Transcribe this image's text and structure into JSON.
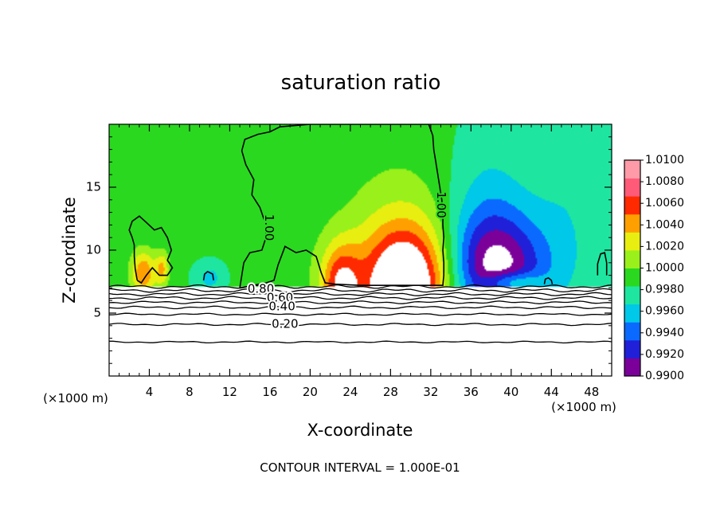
{
  "chart_data": {
    "type": "heatmap",
    "title": "saturation ratio",
    "xlabel": "X-coordinate",
    "ylabel": "Z-coordinate",
    "x_unit_left": "(×1000 m)",
    "x_unit_right": "(×1000 m)",
    "xlim": [
      0,
      50
    ],
    "ylim": [
      0,
      20
    ],
    "x_ticks": [
      4,
      8,
      12,
      16,
      20,
      24,
      28,
      32,
      36,
      40,
      44,
      48
    ],
    "x_tick_labels": [
      "4",
      "8",
      "12",
      "16",
      "20",
      "24",
      "28",
      "32",
      "36",
      "40",
      "44",
      "48"
    ],
    "y_ticks": [
      5,
      10,
      15
    ],
    "y_tick_labels": [
      "5",
      "10",
      "15"
    ],
    "footer": "CONTOUR INTERVAL = 1.000E-01",
    "colorbar": {
      "min": 0.99,
      "max": 1.01,
      "levels": [
        0.99,
        0.992,
        0.994,
        0.996,
        0.998,
        1.0,
        1.002,
        1.004,
        1.006,
        1.008,
        1.01
      ],
      "labels": [
        "0.9900",
        "0.9920",
        "0.9940",
        "0.9960",
        "0.9980",
        "1.0000",
        "1.0020",
        "1.0040",
        "1.0060",
        "1.0080",
        "1.0100"
      ],
      "colors": [
        "#7b009a",
        "#2020d8",
        "#0a6aff",
        "#00c8e8",
        "#1ee6a0",
        "#2ad820",
        "#9af01a",
        "#e8ee10",
        "#ffa000",
        "#ff2a00",
        "#ff5a78",
        "#ff9aa8"
      ]
    },
    "contour_labels": [
      {
        "text": "1.00",
        "x": 15.9,
        "z": 11.8
      },
      {
        "text": "1.00",
        "x": 33.0,
        "z": 13.6
      },
      {
        "text": "0.80",
        "x": 15.1,
        "z": 6.9
      },
      {
        "text": "0.60",
        "x": 17.0,
        "z": 6.2
      },
      {
        "text": "0.40",
        "x": 17.2,
        "z": 5.5
      },
      {
        "text": "0.20",
        "x": 17.5,
        "z": 4.1
      }
    ],
    "field": {
      "background": 1.0003,
      "cloud_base_z": 7.1,
      "features": [
        {
          "x": 29.5,
          "z": 7.1,
          "sx": 3.2,
          "sz": 3.4,
          "amp": 0.0135
        },
        {
          "x": 29.0,
          "z": 11.0,
          "sx": 5.0,
          "sz": 6.0,
          "amp": 0.0022
        },
        {
          "x": 23.0,
          "z": 7.1,
          "sx": 1.4,
          "sz": 2.4,
          "amp": 0.0085
        },
        {
          "x": 17.0,
          "z": 10.0,
          "sx": 2.2,
          "sz": 5.0,
          "amp": 0.0012
        },
        {
          "x": 3.4,
          "z": 8.2,
          "sx": 0.9,
          "sz": 1.3,
          "amp": 0.0075
        },
        {
          "x": 5.3,
          "z": 8.5,
          "sx": 0.5,
          "sz": 1.0,
          "amp": 0.0055
        },
        {
          "x": 38.5,
          "z": 8.3,
          "sx": 3.4,
          "sz": 3.2,
          "amp": -0.0105
        },
        {
          "x": 37.5,
          "z": 13.0,
          "sx": 3.0,
          "sz": 5.0,
          "amp": -0.0028
        },
        {
          "x": 45.5,
          "z": 10.5,
          "sx": 2.5,
          "sz": 4.0,
          "amp": -0.0018
        },
        {
          "x": 47.0,
          "z": 17.5,
          "sx": 3.0,
          "sz": 3.0,
          "amp": -0.0012
        },
        {
          "x": 10.0,
          "z": 7.8,
          "sx": 1.0,
          "sz": 0.8,
          "amp": -0.003
        },
        {
          "x": 40.0,
          "z": 7.4,
          "sx": 2.0,
          "sz": 0.6,
          "amp": 0.006
        }
      ]
    },
    "contours_1_00": [
      [
        [
          13.0,
          7.0
        ],
        [
          13.2,
          8.0
        ],
        [
          13.4,
          9.0
        ],
        [
          14.0,
          9.8
        ],
        [
          15.2,
          10.0
        ],
        [
          15.6,
          11.0
        ],
        [
          15.6,
          12.0
        ],
        [
          15.0,
          13.4
        ],
        [
          14.2,
          14.4
        ],
        [
          14.4,
          15.6
        ],
        [
          13.6,
          16.8
        ],
        [
          13.2,
          17.9
        ],
        [
          13.5,
          18.8
        ],
        [
          14.8,
          19.2
        ],
        [
          16.0,
          19.4
        ],
        [
          17.0,
          19.8
        ],
        [
          20.0,
          20.0
        ],
        [
          24.0,
          20.0
        ],
        [
          28.0,
          20.0
        ],
        [
          31.8,
          20.0
        ],
        [
          32.2,
          19.1
        ],
        [
          32.3,
          18.0
        ],
        [
          32.5,
          17.0
        ],
        [
          32.7,
          16.0
        ],
        [
          32.9,
          15.0
        ],
        [
          33.1,
          14.0
        ],
        [
          33.2,
          13.0
        ],
        [
          33.2,
          12.0
        ],
        [
          33.3,
          11.0
        ],
        [
          33.2,
          10.0
        ],
        [
          33.3,
          9.0
        ],
        [
          33.3,
          8.0
        ],
        [
          33.2,
          7.2
        ],
        [
          31.0,
          7.2
        ],
        [
          29.0,
          7.2
        ],
        [
          25.0,
          7.2
        ],
        [
          22.5,
          7.3
        ],
        [
          21.5,
          7.4
        ],
        [
          21.1,
          8.2
        ],
        [
          20.6,
          9.5
        ],
        [
          19.6,
          10.0
        ],
        [
          18.6,
          9.8
        ],
        [
          17.5,
          10.3
        ],
        [
          16.8,
          8.8
        ],
        [
          16.4,
          7.6
        ],
        [
          15.6,
          7.4
        ],
        [
          13.0,
          7.0
        ]
      ],
      [
        [
          2.8,
          7.6
        ],
        [
          2.6,
          8.5
        ],
        [
          2.5,
          9.5
        ],
        [
          2.5,
          10.4
        ],
        [
          2.3,
          11.0
        ],
        [
          2.0,
          11.6
        ],
        [
          2.3,
          12.3
        ],
        [
          3.0,
          12.7
        ],
        [
          3.7,
          12.2
        ],
        [
          4.5,
          11.6
        ],
        [
          5.2,
          11.8
        ],
        [
          5.8,
          11.0
        ],
        [
          6.2,
          10.0
        ],
        [
          5.8,
          9.2
        ],
        [
          6.3,
          8.6
        ],
        [
          5.8,
          8.0
        ],
        [
          5.0,
          8.0
        ],
        [
          4.3,
          8.6
        ],
        [
          3.7,
          8.0
        ],
        [
          3.2,
          7.4
        ],
        [
          2.8,
          7.6
        ]
      ],
      [
        [
          9.4,
          7.6
        ],
        [
          9.5,
          8.1
        ],
        [
          9.8,
          8.3
        ],
        [
          10.3,
          8.1
        ],
        [
          10.4,
          7.6
        ]
      ],
      [
        [
          43.3,
          7.3
        ],
        [
          43.4,
          7.7
        ],
        [
          43.7,
          7.8
        ],
        [
          44.0,
          7.6
        ],
        [
          44.1,
          7.3
        ]
      ],
      [
        [
          48.6,
          8.0
        ],
        [
          48.6,
          8.9
        ],
        [
          48.9,
          9.7
        ],
        [
          49.3,
          9.8
        ],
        [
          49.5,
          9.0
        ],
        [
          49.5,
          8.0
        ]
      ]
    ],
    "contours_low": [
      {
        "level": 0.9,
        "z": 7.1,
        "amp": 0.08
      },
      {
        "level": 0.8,
        "z": 6.8,
        "amp": 0.08
      },
      {
        "level": 0.7,
        "z": 6.5,
        "amp": 0.07
      },
      {
        "level": 0.6,
        "z": 6.2,
        "amp": 0.07
      },
      {
        "level": 0.5,
        "z": 5.85,
        "amp": 0.06
      },
      {
        "level": 0.4,
        "z": 5.45,
        "amp": 0.06
      },
      {
        "level": 0.3,
        "z": 4.9,
        "amp": 0.05
      },
      {
        "level": 0.2,
        "z": 4.1,
        "amp": 0.05
      },
      {
        "level": 0.1,
        "z": 2.7,
        "amp": 0.04
      }
    ]
  }
}
